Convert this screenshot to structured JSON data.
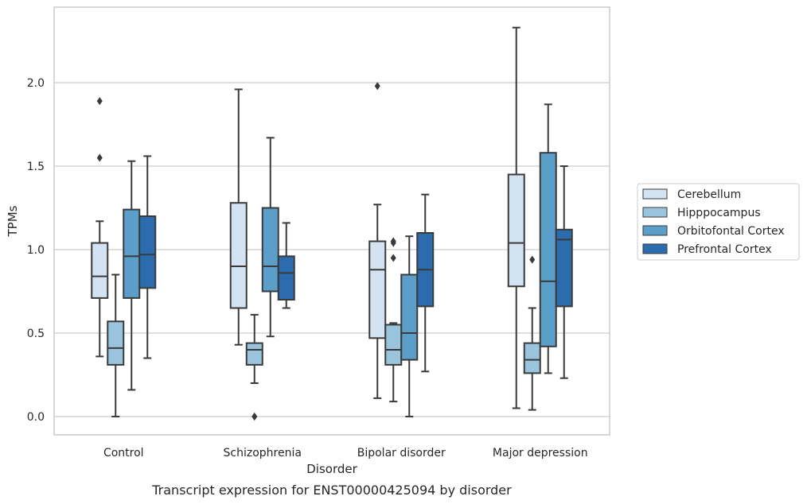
{
  "caption": "Transcript expression for ENST00000425094 by disorder",
  "chart_data": {
    "type": "box",
    "xlabel": "Disorder",
    "ylabel": "TPMs",
    "ylim": [
      -0.11,
      2.47
    ],
    "yticks": [
      0.0,
      0.5,
      1.0,
      1.5,
      2.0
    ],
    "ytick_labels": [
      "0.0",
      "0.5",
      "1.0",
      "1.5",
      "2.0"
    ],
    "grid": "horizontal",
    "legend_position": "right",
    "categories": [
      "Control",
      "Schizophrenia",
      "Bipolar disorder",
      "Major depression"
    ],
    "series": [
      {
        "name": "Cerebellum",
        "color": "#d3e3f2",
        "boxes": [
          {
            "whisker_low": 0.36,
            "q1": 0.71,
            "median": 0.84,
            "q3": 1.04,
            "whisker_high": 1.17,
            "outliers": [
              1.55,
              1.89
            ]
          },
          {
            "whisker_low": 0.43,
            "q1": 0.65,
            "median": 0.9,
            "q3": 1.28,
            "whisker_high": 1.96,
            "outliers": []
          },
          {
            "whisker_low": 0.11,
            "q1": 0.47,
            "median": 0.88,
            "q3": 1.05,
            "whisker_high": 1.27,
            "outliers": [
              1.98
            ]
          },
          {
            "whisker_low": 0.05,
            "q1": 0.78,
            "median": 1.04,
            "q3": 1.45,
            "whisker_high": 2.33,
            "outliers": []
          }
        ]
      },
      {
        "name": "Hipppocampus",
        "color": "#9ac3dd",
        "boxes": [
          {
            "whisker_low": 0.0,
            "q1": 0.31,
            "median": 0.41,
            "q3": 0.57,
            "whisker_high": 0.85,
            "outliers": []
          },
          {
            "whisker_low": 0.2,
            "q1": 0.31,
            "median": 0.4,
            "q3": 0.44,
            "whisker_high": 0.61,
            "outliers": [
              0.0,
              0.0
            ]
          },
          {
            "whisker_low": 0.09,
            "q1": 0.31,
            "median": 0.4,
            "q3": 0.55,
            "whisker_high": 0.56,
            "outliers": [
              0.95,
              1.04,
              1.05
            ]
          },
          {
            "whisker_low": 0.04,
            "q1": 0.26,
            "median": 0.34,
            "q3": 0.44,
            "whisker_high": 0.65,
            "outliers": [
              0.94
            ]
          }
        ]
      },
      {
        "name": "Orbitofontal Cortex",
        "color": "#5a9ec9",
        "boxes": [
          {
            "whisker_low": 0.16,
            "q1": 0.71,
            "median": 0.96,
            "q3": 1.24,
            "whisker_high": 1.53,
            "outliers": []
          },
          {
            "whisker_low": 0.48,
            "q1": 0.75,
            "median": 0.9,
            "q3": 1.25,
            "whisker_high": 1.67,
            "outliers": []
          },
          {
            "whisker_low": 0.0,
            "q1": 0.34,
            "median": 0.5,
            "q3": 0.85,
            "whisker_high": 1.08,
            "outliers": []
          },
          {
            "whisker_low": 0.26,
            "q1": 0.42,
            "median": 0.81,
            "q3": 1.58,
            "whisker_high": 1.87,
            "outliers": []
          }
        ]
      },
      {
        "name": "Prefrontal Cortex",
        "color": "#2a6cae",
        "boxes": [
          {
            "whisker_low": 0.35,
            "q1": 0.77,
            "median": 0.97,
            "q3": 1.2,
            "whisker_high": 1.56,
            "outliers": []
          },
          {
            "whisker_low": 0.65,
            "q1": 0.7,
            "median": 0.86,
            "q3": 0.96,
            "whisker_high": 1.16,
            "outliers": []
          },
          {
            "whisker_low": 0.27,
            "q1": 0.66,
            "median": 0.88,
            "q3": 1.1,
            "whisker_high": 1.33,
            "outliers": []
          },
          {
            "whisker_low": 0.23,
            "q1": 0.66,
            "median": 1.06,
            "q3": 1.12,
            "whisker_high": 1.5,
            "outliers": []
          }
        ]
      }
    ]
  }
}
